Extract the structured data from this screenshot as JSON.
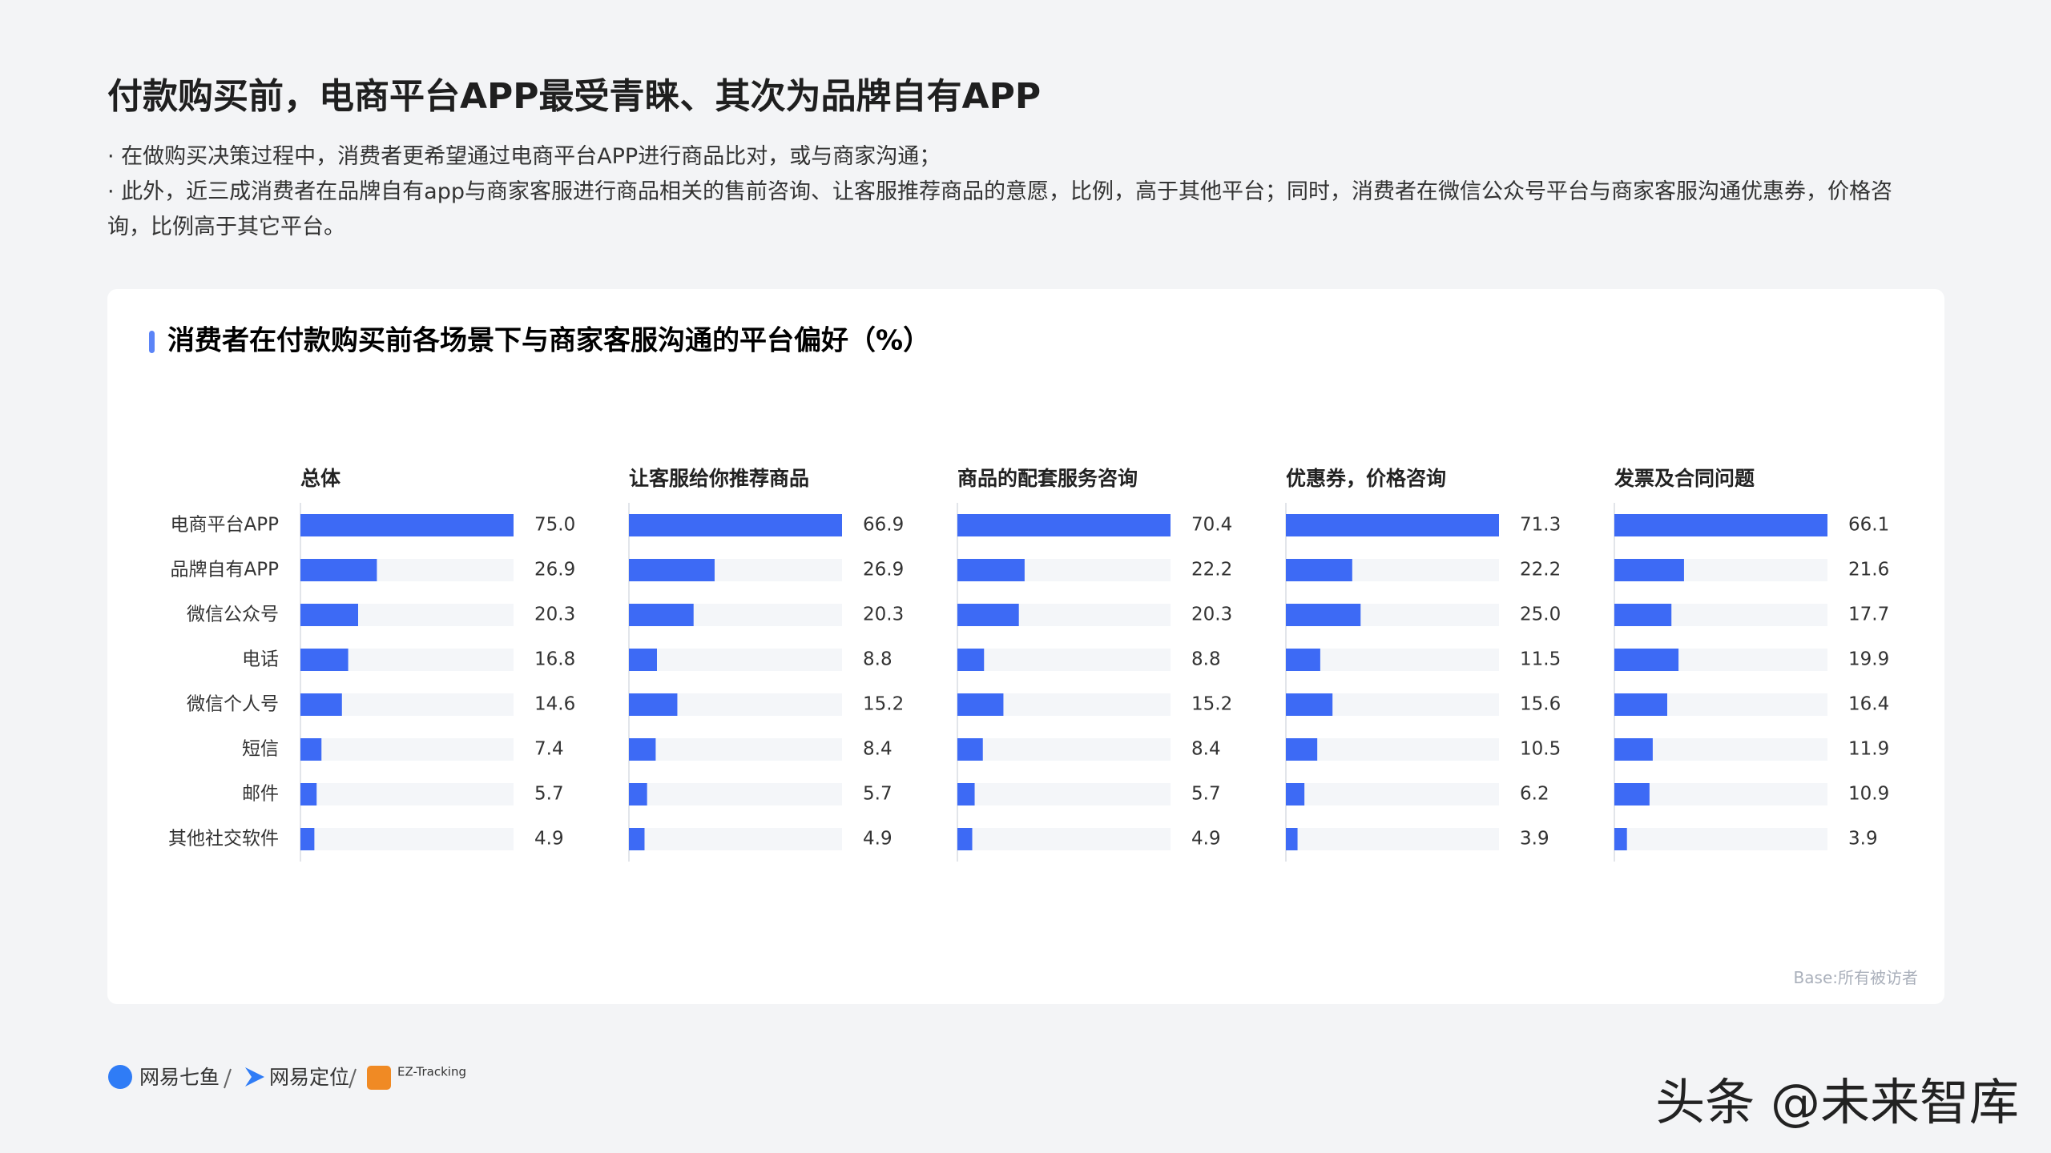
{
  "page": {
    "title": "付款购买前，电商平台APP最受青睐、其次为品牌自有APP",
    "bullets": [
      "· 在做购买决策过程中，消费者更希望通过电商平台APP进行商品比对，或与商家沟通；",
      "· 此外，近三成消费者在品牌自有app与商家客服进行商品相关的售前咨询、让客服推荐商品的意愿，比例，高于其他平台；同时，消费者在微信公众号平台与商家客服沟通优惠券，价格咨询，比例高于其它平台。"
    ],
    "base_note": "Base:所有被访者",
    "footer": [
      "网易七鱼",
      "网易定位",
      "EZ-Tracking"
    ],
    "watermark": "头条 @未来智库"
  },
  "chart_data": {
    "type": "bar",
    "orientation": "horizontal",
    "title": "消费者在付款购买前各场景下与商家客服沟通的平台偏好（%）",
    "color": "#3d6af5",
    "categories": [
      "电商平台APP",
      "品牌自有APP",
      "微信公众号",
      "电话",
      "微信个人号",
      "短信",
      "邮件",
      "其他社交软件"
    ],
    "panels": [
      {
        "name": "总体",
        "xlim": [
          0,
          75
        ],
        "values": [
          75,
          26.9,
          20.3,
          16.8,
          14.6,
          7.4,
          5.7,
          4.9
        ],
        "value_labels": [
          "75.0",
          "26.9",
          "20.3",
          "16.8",
          "14.6",
          "7.4",
          "5.7",
          "4.9"
        ]
      },
      {
        "name": "让客服给你推荐商品",
        "xlim": [
          0,
          66.9
        ],
        "values": [
          66.9,
          26.9,
          20.3,
          8.8,
          15.2,
          8.4,
          5.7,
          4.9
        ],
        "value_labels": [
          "66.9",
          "26.9",
          "20.3",
          "8.8",
          "15.2",
          "8.4",
          "5.7",
          "4.9"
        ]
      },
      {
        "name": "商品的配套服务咨询",
        "xlim": [
          0,
          70.4
        ],
        "values": [
          70.4,
          22.2,
          20.3,
          8.8,
          15.2,
          8.4,
          5.7,
          4.9
        ],
        "value_labels": [
          "70.4",
          "22.2",
          "20.3",
          "8.8",
          "15.2",
          "8.4",
          "5.7",
          "4.9"
        ]
      },
      {
        "name": "优惠券，价格咨询",
        "xlim": [
          0,
          71.3
        ],
        "values": [
          71.3,
          22.2,
          25,
          11.5,
          15.6,
          10.5,
          6.2,
          3.9
        ],
        "value_labels": [
          "71.3",
          "22.2",
          "25.0",
          "11.5",
          "15.6",
          "10.5",
          "6.2",
          "3.9"
        ]
      },
      {
        "name": "发票及合同问题",
        "xlim": [
          0,
          66.1
        ],
        "values": [
          66.1,
          21.6,
          17.7,
          19.9,
          16.4,
          11.9,
          10.9,
          3.9
        ],
        "value_labels": [
          "66.1",
          "21.6",
          "17.7",
          "19.9",
          "16.4",
          "11.9",
          "10.9",
          "3.9"
        ]
      }
    ]
  }
}
